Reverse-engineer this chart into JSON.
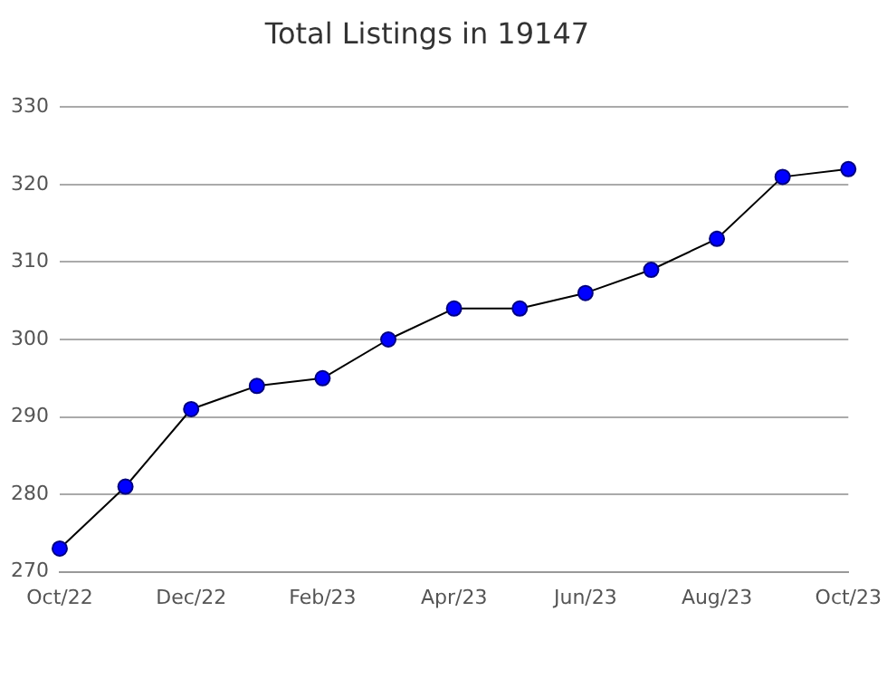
{
  "chart_data": {
    "type": "line",
    "title": "Total Listings in 19147",
    "categories": [
      "Oct/22",
      null,
      "Dec/22",
      null,
      "Feb/23",
      null,
      "Apr/23",
      null,
      "Jun/23",
      null,
      "Aug/23",
      null,
      "Oct/23"
    ],
    "series": [
      {
        "color": "#0000ff",
        "values": [
          273,
          281,
          291,
          294,
          295,
          300,
          304,
          304,
          306,
          309,
          313,
          321,
          322
        ]
      }
    ],
    "ylim": [
      270,
      330
    ],
    "yticks": [
      270,
      280,
      290,
      300,
      310,
      320,
      330
    ],
    "grid": "y",
    "marker": "circle",
    "line_style": "solid",
    "legend": false
  }
}
